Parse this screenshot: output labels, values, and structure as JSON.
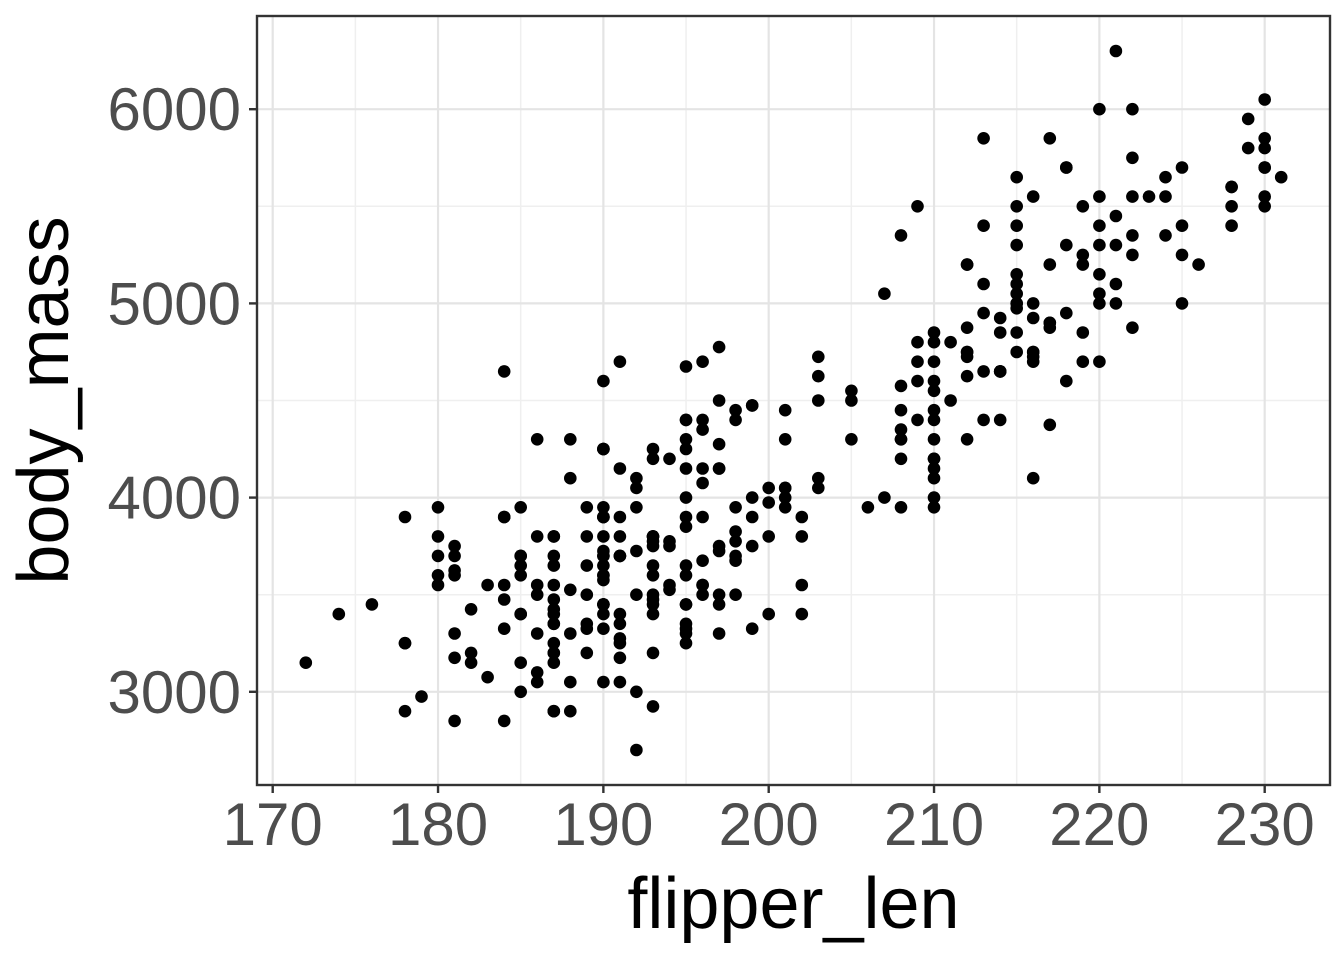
{
  "chart_data": {
    "type": "scatter",
    "title": "",
    "xlabel": "flipper_len",
    "ylabel": "body_mass",
    "xlim": [
      169.05,
      233.95
    ],
    "ylim": [
      2520,
      6480
    ],
    "x_major_ticks": [
      170,
      180,
      190,
      200,
      210,
      220,
      230
    ],
    "x_minor_ticks": [
      175,
      185,
      195,
      205,
      215,
      225
    ],
    "y_major_ticks": [
      3000,
      4000,
      5000,
      6000
    ],
    "y_minor_ticks": [
      3500,
      4500,
      5500
    ],
    "grid": "on",
    "legend_position": "none",
    "point_color": "#000000",
    "point_radius_px": 6.3,
    "panel_background": "#ffffff",
    "major_grid_color": "#e4e4e4",
    "minor_grid_color": "#efefef",
    "border_color": "#333333",
    "tick_color": "#333333",
    "tick_label_color": "#4d4d4d",
    "axis_title_color": "#000000",
    "points": [
      [
        181,
        3750
      ],
      [
        186,
        3800
      ],
      [
        195,
        3250
      ],
      [
        193,
        3450
      ],
      [
        190,
        3650
      ],
      [
        181,
        3625
      ],
      [
        195,
        4675
      ],
      [
        193,
        3475
      ],
      [
        190,
        4250
      ],
      [
        186,
        3300
      ],
      [
        180,
        3700
      ],
      [
        182,
        3200
      ],
      [
        191,
        3800
      ],
      [
        198,
        4400
      ],
      [
        185,
        3700
      ],
      [
        195,
        3450
      ],
      [
        197,
        4500
      ],
      [
        184,
        3325
      ],
      [
        194,
        4200
      ],
      [
        174,
        3400
      ],
      [
        180,
        3600
      ],
      [
        189,
        3800
      ],
      [
        185,
        3950
      ],
      [
        180,
        3800
      ],
      [
        187,
        3800
      ],
      [
        183,
        3550
      ],
      [
        187,
        3200
      ],
      [
        172,
        3150
      ],
      [
        180,
        3950
      ],
      [
        178,
        3250
      ],
      [
        178,
        3900
      ],
      [
        188,
        3300
      ],
      [
        184,
        3900
      ],
      [
        195,
        3325
      ],
      [
        196,
        4150
      ],
      [
        190,
        3950
      ],
      [
        180,
        3550
      ],
      [
        181,
        3300
      ],
      [
        184,
        4650
      ],
      [
        182,
        3150
      ],
      [
        195,
        3900
      ],
      [
        186,
        3100
      ],
      [
        196,
        4400
      ],
      [
        185,
        3000
      ],
      [
        190,
        4600
      ],
      [
        182,
        3425
      ],
      [
        179,
        2975
      ],
      [
        190,
        3450
      ],
      [
        191,
        4150
      ],
      [
        186,
        3500
      ],
      [
        188,
        4300
      ],
      [
        190,
        3450
      ],
      [
        200,
        4050
      ],
      [
        187,
        2900
      ],
      [
        191,
        3700
      ],
      [
        186,
        3550
      ],
      [
        193,
        3800
      ],
      [
        181,
        2850
      ],
      [
        194,
        3750
      ],
      [
        185,
        3150
      ],
      [
        195,
        4400
      ],
      [
        185,
        3600
      ],
      [
        192,
        4050
      ],
      [
        184,
        2850
      ],
      [
        192,
        3950
      ],
      [
        195,
        3350
      ],
      [
        188,
        4100
      ],
      [
        190,
        3050
      ],
      [
        198,
        4450
      ],
      [
        190,
        3600
      ],
      [
        190,
        3900
      ],
      [
        196,
        3550
      ],
      [
        197,
        4150
      ],
      [
        190,
        3700
      ],
      [
        195,
        4250
      ],
      [
        191,
        3700
      ],
      [
        184,
        3900
      ],
      [
        187,
        3550
      ],
      [
        195,
        4000
      ],
      [
        189,
        3200
      ],
      [
        196,
        4700
      ],
      [
        187,
        3800
      ],
      [
        193,
        4200
      ],
      [
        191,
        3350
      ],
      [
        194,
        3550
      ],
      [
        190,
        3800
      ],
      [
        189,
        3500
      ],
      [
        189,
        3950
      ],
      [
        190,
        3600
      ],
      [
        202,
        3550
      ],
      [
        205,
        4300
      ],
      [
        185,
        3400
      ],
      [
        186,
        4300
      ],
      [
        187,
        3400
      ],
      [
        208,
        4300
      ],
      [
        190,
        3700
      ],
      [
        196,
        4350
      ],
      [
        178,
        2900
      ],
      [
        192,
        4100
      ],
      [
        192,
        3725
      ],
      [
        203,
        4725
      ],
      [
        183,
        3075
      ],
      [
        190,
        4250
      ],
      [
        193,
        2925
      ],
      [
        184,
        3550
      ],
      [
        199,
        3750
      ],
      [
        190,
        3900
      ],
      [
        181,
        3175
      ],
      [
        197,
        4775
      ],
      [
        198,
        3825
      ],
      [
        191,
        4700
      ],
      [
        193,
        3200
      ],
      [
        197,
        4275
      ],
      [
        191,
        3900
      ],
      [
        196,
        4075
      ],
      [
        188,
        2900
      ],
      [
        199,
        4475
      ],
      [
        189,
        3350
      ],
      [
        189,
        3325
      ],
      [
        187,
        3150
      ],
      [
        198,
        3500
      ],
      [
        176,
        3450
      ],
      [
        202,
        3900
      ],
      [
        186,
        3050
      ],
      [
        199,
        4000
      ],
      [
        191,
        3275
      ],
      [
        195,
        4300
      ],
      [
        191,
        3050
      ],
      [
        210,
        4000
      ],
      [
        190,
        3325
      ],
      [
        197,
        3500
      ],
      [
        193,
        3500
      ],
      [
        199,
        4475
      ],
      [
        187,
        3425
      ],
      [
        190,
        3900
      ],
      [
        191,
        3175
      ],
      [
        200,
        3975
      ],
      [
        185,
        3400
      ],
      [
        193,
        4250
      ],
      [
        193,
        3400
      ],
      [
        187,
        3475
      ],
      [
        188,
        3050
      ],
      [
        190,
        3725
      ],
      [
        192,
        3000
      ],
      [
        185,
        3650
      ],
      [
        190,
        4250
      ],
      [
        184,
        3475
      ],
      [
        195,
        3450
      ],
      [
        193,
        3750
      ],
      [
        187,
        3700
      ],
      [
        201,
        4000
      ],
      [
        192,
        3500
      ],
      [
        196,
        3900
      ],
      [
        193,
        3650
      ],
      [
        188,
        3525
      ],
      [
        197,
        3725
      ],
      [
        198,
        3950
      ],
      [
        178,
        3250
      ],
      [
        197,
        3750
      ],
      [
        195,
        4150
      ],
      [
        198,
        3700
      ],
      [
        193,
        3800
      ],
      [
        194,
        3775
      ],
      [
        185,
        3700
      ],
      [
        201,
        4050
      ],
      [
        190,
        3575
      ],
      [
        201,
        4050
      ],
      [
        197,
        3300
      ],
      [
        181,
        3700
      ],
      [
        190,
        3450
      ],
      [
        195,
        4400
      ],
      [
        181,
        3600
      ],
      [
        191,
        3400
      ],
      [
        187,
        2900
      ],
      [
        193,
        3800
      ],
      [
        195,
        3300
      ],
      [
        197,
        4150
      ],
      [
        200,
        3400
      ],
      [
        200,
        3800
      ],
      [
        191,
        3700
      ],
      [
        205,
        4550
      ],
      [
        187,
        3200
      ],
      [
        201,
        4300
      ],
      [
        187,
        3350
      ],
      [
        203,
        4100
      ],
      [
        195,
        3600
      ],
      [
        199,
        3900
      ],
      [
        195,
        3850
      ],
      [
        210,
        4800
      ],
      [
        192,
        2700
      ],
      [
        205,
        4500
      ],
      [
        210,
        3950
      ],
      [
        187,
        3650
      ],
      [
        196,
        3550
      ],
      [
        196,
        3500
      ],
      [
        196,
        3675
      ],
      [
        201,
        4450
      ],
      [
        190,
        3400
      ],
      [
        212,
        4300
      ],
      [
        187,
        3250
      ],
      [
        198,
        3675
      ],
      [
        199,
        3325
      ],
      [
        201,
        3950
      ],
      [
        193,
        3600
      ],
      [
        203,
        4500
      ],
      [
        187,
        3350
      ],
      [
        197,
        3450
      ],
      [
        191,
        3250
      ],
      [
        203,
        4050
      ],
      [
        202,
        3800
      ],
      [
        194,
        3525
      ],
      [
        206,
        3950
      ],
      [
        189,
        3650
      ],
      [
        195,
        3650
      ],
      [
        207,
        4000
      ],
      [
        202,
        3400
      ],
      [
        193,
        3775
      ],
      [
        210,
        4100
      ],
      [
        198,
        3775
      ],
      [
        211,
        4500
      ],
      [
        230,
        5700
      ],
      [
        210,
        4450
      ],
      [
        218,
        5700
      ],
      [
        215,
        5400
      ],
      [
        210,
        4550
      ],
      [
        211,
        4800
      ],
      [
        219,
        5200
      ],
      [
        209,
        4400
      ],
      [
        215,
        5150
      ],
      [
        214,
        4650
      ],
      [
        216,
        5550
      ],
      [
        214,
        4650
      ],
      [
        213,
        5850
      ],
      [
        210,
        4200
      ],
      [
        217,
        5850
      ],
      [
        210,
        4150
      ],
      [
        221,
        6300
      ],
      [
        209,
        4800
      ],
      [
        222,
        5350
      ],
      [
        218,
        5700
      ],
      [
        215,
        5000
      ],
      [
        213,
        4400
      ],
      [
        215,
        5050
      ],
      [
        215,
        5000
      ],
      [
        215,
        5100
      ],
      [
        216,
        4100
      ],
      [
        215,
        5650
      ],
      [
        210,
        4600
      ],
      [
        220,
        5550
      ],
      [
        222,
        5250
      ],
      [
        209,
        4700
      ],
      [
        207,
        5050
      ],
      [
        230,
        6050
      ],
      [
        220,
        5150
      ],
      [
        220,
        5400
      ],
      [
        213,
        4950
      ],
      [
        219,
        5250
      ],
      [
        208,
        4350
      ],
      [
        208,
        5350
      ],
      [
        208,
        3950
      ],
      [
        225,
        5700
      ],
      [
        210,
        4300
      ],
      [
        216,
        4750
      ],
      [
        222,
        5550
      ],
      [
        217,
        4900
      ],
      [
        210,
        4200
      ],
      [
        225,
        5400
      ],
      [
        213,
        5100
      ],
      [
        215,
        5300
      ],
      [
        210,
        4850
      ],
      [
        220,
        5300
      ],
      [
        210,
        4400
      ],
      [
        225,
        5000
      ],
      [
        217,
        4900
      ],
      [
        220,
        5050
      ],
      [
        208,
        4300
      ],
      [
        220,
        5000
      ],
      [
        208,
        4450
      ],
      [
        224,
        5550
      ],
      [
        208,
        4200
      ],
      [
        221,
        5300
      ],
      [
        214,
        4400
      ],
      [
        231,
        5650
      ],
      [
        219,
        4700
      ],
      [
        230,
        5700
      ],
      [
        214,
        4650
      ],
      [
        229,
        5800
      ],
      [
        220,
        4700
      ],
      [
        223,
        5550
      ],
      [
        216,
        4750
      ],
      [
        221,
        5000
      ],
      [
        221,
        5100
      ],
      [
        217,
        5200
      ],
      [
        216,
        4700
      ],
      [
        230,
        5800
      ],
      [
        209,
        4600
      ],
      [
        220,
        6000
      ],
      [
        215,
        4750
      ],
      [
        212,
        5200
      ],
      [
        212,
        4625
      ],
      [
        221,
        5450
      ],
      [
        212,
        4725
      ],
      [
        224,
        5350
      ],
      [
        212,
        4750
      ],
      [
        228,
        5600
      ],
      [
        218,
        4600
      ],
      [
        218,
        5300
      ],
      [
        212,
        4875
      ],
      [
        230,
        5550
      ],
      [
        218,
        4950
      ],
      [
        228,
        5400
      ],
      [
        212,
        4750
      ],
      [
        224,
        5650
      ],
      [
        214,
        4850
      ],
      [
        226,
        5200
      ],
      [
        216,
        4925
      ],
      [
        222,
        4875
      ],
      [
        203,
        4625
      ],
      [
        225,
        5250
      ],
      [
        219,
        4850
      ],
      [
        228,
        5600
      ],
      [
        215,
        4975
      ],
      [
        228,
        5500
      ],
      [
        216,
        4725
      ],
      [
        215,
        5500
      ],
      [
        210,
        4700
      ],
      [
        219,
        5500
      ],
      [
        208,
        4575
      ],
      [
        209,
        5500
      ],
      [
        216,
        5000
      ],
      [
        229,
        5950
      ],
      [
        213,
        4650
      ],
      [
        230,
        5500
      ],
      [
        217,
        4375
      ],
      [
        230,
        5850
      ],
      [
        217,
        4875
      ],
      [
        222,
        6000
      ],
      [
        214,
        4925
      ],
      [
        215,
        4850
      ],
      [
        222,
        5750
      ],
      [
        212,
        5200
      ],
      [
        213,
        5400
      ]
    ]
  }
}
